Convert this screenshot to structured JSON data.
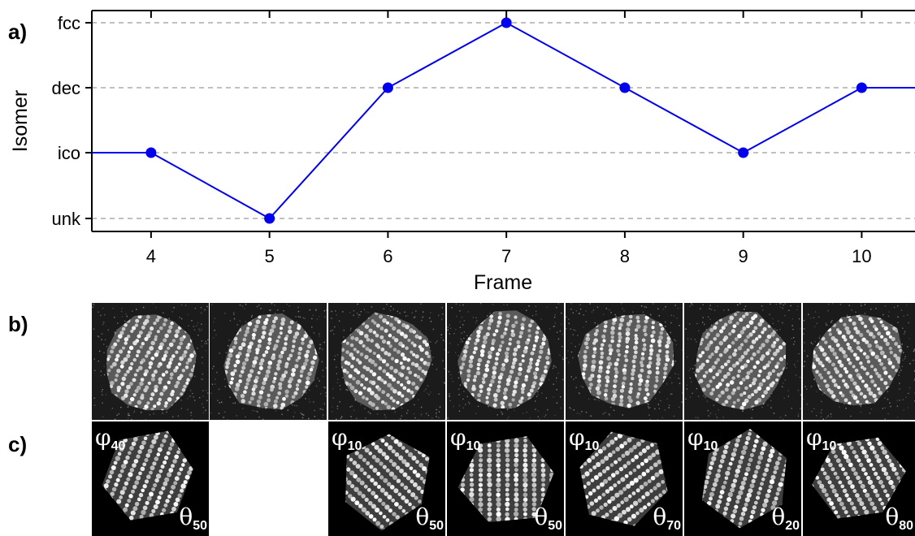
{
  "panel_labels": {
    "a": "a)",
    "b": "b)",
    "c": "c)"
  },
  "chart_data": {
    "type": "line",
    "title": "",
    "xlabel": "Frame",
    "ylabel": "Isomer",
    "xlim": [
      3.5,
      10.45
    ],
    "x_ticks": [
      "4",
      "5",
      "6",
      "7",
      "8",
      "9",
      "10"
    ],
    "y_categories": [
      "unk",
      "ico",
      "dec",
      "fcc"
    ],
    "grid": "horizontal dashed",
    "series": [
      {
        "color": "#0000ee",
        "x": [
          3,
          4,
          5,
          6,
          7,
          8,
          9,
          10,
          11
        ],
        "y": [
          "ico",
          "ico",
          "unk",
          "dec",
          "fcc",
          "dec",
          "ico",
          "dec",
          "dec"
        ]
      }
    ]
  },
  "row_b": {
    "description_tiles": 7
  },
  "row_c": [
    {
      "phi_sym": "φ",
      "phi_sub": "40",
      "theta_sym": "θ",
      "theta_sub": "50",
      "present": true
    },
    {
      "present": false
    },
    {
      "phi_sym": "φ",
      "phi_sub": "10",
      "theta_sym": "θ",
      "theta_sub": "50",
      "present": true
    },
    {
      "phi_sym": "φ",
      "phi_sub": "10",
      "theta_sym": "θ",
      "theta_sub": "50",
      "present": true
    },
    {
      "phi_sym": "φ",
      "phi_sub": "10",
      "theta_sym": "θ",
      "theta_sub": "70",
      "present": true
    },
    {
      "phi_sym": "φ",
      "phi_sub": "10",
      "theta_sym": "θ",
      "theta_sub": "20",
      "present": true
    },
    {
      "phi_sym": "φ",
      "phi_sub": "10",
      "theta_sym": "θ",
      "theta_sub": "80",
      "present": true
    }
  ]
}
